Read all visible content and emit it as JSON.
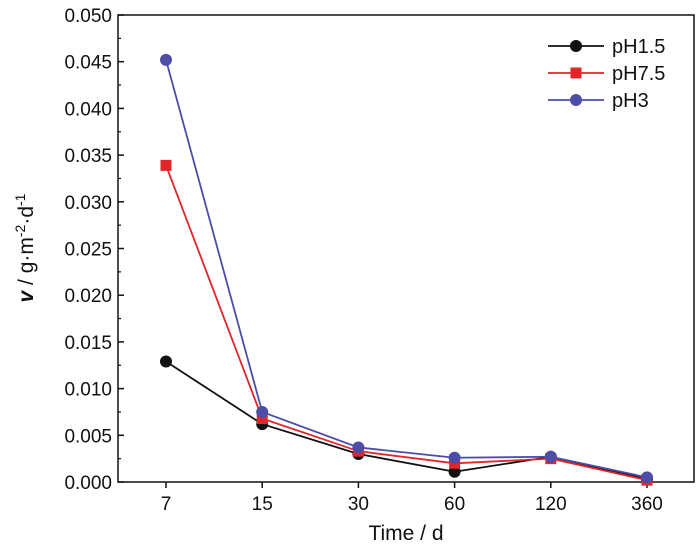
{
  "chart_data": {
    "type": "line",
    "categories": [
      "7",
      "15",
      "30",
      "60",
      "120",
      "360"
    ],
    "xlabel": "Time / d",
    "ylabel": "v / g·m-2·d-1",
    "ylabel_parts": {
      "var": "v",
      "unit_a": " / g·m",
      "sup_a": "-2",
      "unit_b": "·d",
      "sup_b": "-1"
    },
    "ylim": [
      0.0,
      0.05
    ],
    "yticks": [
      "0.000",
      "0.005",
      "0.010",
      "0.015",
      "0.020",
      "0.025",
      "0.030",
      "0.035",
      "0.040",
      "0.045",
      "0.050"
    ],
    "legend_position": "top-right",
    "grid": false,
    "series": [
      {
        "name": "pH1.5",
        "color": "#111111",
        "marker": "circle",
        "values": [
          0.0129,
          0.0062,
          0.003,
          0.0011,
          0.0027,
          0.0003
        ]
      },
      {
        "name": "pH7.5",
        "color": "#e0262b",
        "marker": "square",
        "values": [
          0.0339,
          0.0068,
          0.0033,
          0.002,
          0.0025,
          0.0002
        ]
      },
      {
        "name": "pH3",
        "color": "#4d4da8",
        "marker": "circle",
        "values": [
          0.0452,
          0.0075,
          0.0037,
          0.0026,
          0.0027,
          0.0005
        ]
      }
    ]
  }
}
